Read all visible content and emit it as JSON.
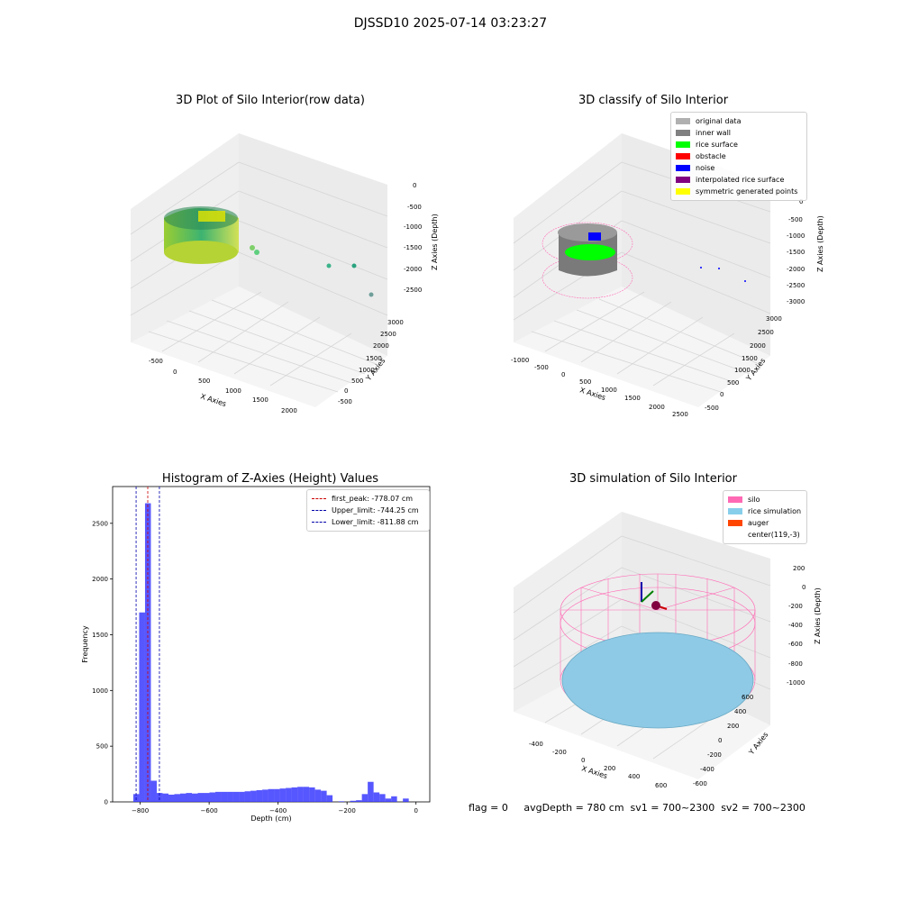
{
  "suptitle": "DJSSD10 2025-07-14 03:23:27",
  "footer": "flag = 0     avgDepth = 780 cm  sv1 = 700~2300  sv2 = 700~2300",
  "colors": {
    "histogram": "#3a3aff",
    "first_peak": "#cc0000",
    "limits": "#0000aa"
  },
  "chart_data": [
    {
      "type": "scatter",
      "title": "3D Plot of Silo Interior(row data)",
      "xlabel": "X Axies",
      "ylabel": "Y Axies",
      "zlabel": "Z Axies (Depth)",
      "xticks": [
        "-500",
        "0",
        "500",
        "1000",
        "1500",
        "2000"
      ],
      "yticks": [
        "-500",
        "0",
        "500",
        "1000",
        "1500",
        "2000",
        "2500",
        "3000"
      ],
      "zticks": [
        "0",
        "-500",
        "-1000",
        "-1500",
        "-2000",
        "-2500"
      ],
      "colormap": "viridis-to-yellow"
    },
    {
      "type": "scatter",
      "title": "3D classify of Silo Interior",
      "xlabel": "X Axies",
      "ylabel": "Y Axies",
      "zlabel": "Z Axies (Depth)",
      "xticks": [
        "-1000",
        "-500",
        "0",
        "500",
        "1000",
        "1500",
        "2000",
        "2500"
      ],
      "yticks": [
        "-500",
        "0",
        "500",
        "1000",
        "1500",
        "2000",
        "2500",
        "3000"
      ],
      "zticks": [
        "0",
        "-500",
        "-1000",
        "-1500",
        "-2000",
        "-2500",
        "-3000"
      ],
      "legend": [
        {
          "label": "original data",
          "color": "#b0b0b0"
        },
        {
          "label": "inner wall",
          "color": "#808080"
        },
        {
          "label": "rice surface",
          "color": "#00ff00"
        },
        {
          "label": "obstacle",
          "color": "#ff0000"
        },
        {
          "label": "noise",
          "color": "#0000ff"
        },
        {
          "label": "interpolated rice surface",
          "color": "#800080"
        },
        {
          "label": "symmetric generated points",
          "color": "#ffff00"
        }
      ]
    },
    {
      "type": "bar",
      "title": "Histogram of Z-Axies (Height) Values",
      "xlabel": "Depth (cm)",
      "ylabel": "Frequency",
      "xlim": [
        -880,
        40
      ],
      "ylim": [
        0,
        2830
      ],
      "xticks": [
        -800,
        -600,
        -400,
        -200,
        0
      ],
      "yticks": [
        0,
        500,
        1000,
        1500,
        2000,
        2500
      ],
      "bin_width": 17,
      "bins_start": [
        -820,
        -803,
        -786,
        -769,
        -752,
        -735,
        -718,
        -701,
        -684,
        -667,
        -650,
        -633,
        -616,
        -599,
        -582,
        -565,
        -548,
        -531,
        -514,
        -497,
        -480,
        -463,
        -446,
        -429,
        -412,
        -395,
        -378,
        -361,
        -344,
        -327,
        -310,
        -293,
        -276,
        -259,
        -242,
        -225,
        -208,
        -191,
        -174,
        -157,
        -140,
        -123,
        -106,
        -89,
        -72,
        -55,
        -38,
        -21,
        -4
      ],
      "counts": [
        70,
        1700,
        2680,
        190,
        80,
        75,
        65,
        70,
        75,
        80,
        75,
        80,
        80,
        85,
        90,
        90,
        90,
        90,
        90,
        95,
        100,
        105,
        110,
        115,
        115,
        120,
        125,
        130,
        135,
        135,
        130,
        110,
        100,
        60,
        0,
        5,
        0,
        10,
        15,
        70,
        180,
        85,
        70,
        30,
        50,
        0,
        30,
        0,
        0
      ],
      "lines": [
        {
          "label": "first_peak: -778.07 cm",
          "x": -778.07,
          "color": "#cc0000"
        },
        {
          "label": "Upper_limit: -744.25 cm",
          "x": -744.25,
          "color": "#0000aa"
        },
        {
          "label": "Lower_limit: -811.88 cm",
          "x": -811.88,
          "color": "#0000aa"
        }
      ]
    },
    {
      "type": "scatter",
      "title": "3D simulation of Silo Interior",
      "xlabel": "X Axies",
      "ylabel": "Y Axies",
      "zlabel": "Z Axies (Depth)",
      "xticks": [
        "-400",
        "-200",
        "0",
        "200",
        "400",
        "600"
      ],
      "yticks": [
        "-600",
        "-400",
        "-200",
        "0",
        "200",
        "400",
        "600"
      ],
      "zticks": [
        "200",
        "0",
        "-200",
        "-400",
        "-600",
        "-800",
        "-1000"
      ],
      "legend": [
        {
          "label": "silo",
          "color": "#ff69b4"
        },
        {
          "label": "rice simulation",
          "color": "#87ceeb"
        },
        {
          "label": "auger",
          "color": "#ff4500"
        },
        {
          "label": "center(119,-3)",
          "color": "#ffffff"
        }
      ]
    }
  ]
}
